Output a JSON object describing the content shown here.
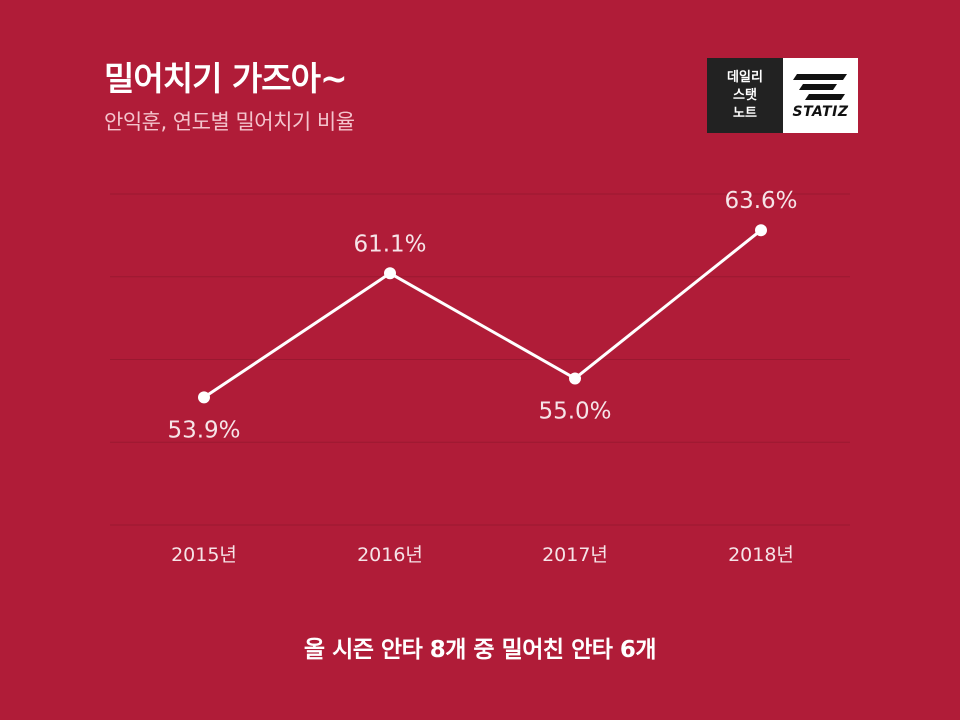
{
  "header": {
    "title": "밀어치기 가즈아~",
    "subtitle": "안익훈, 연도별 밀어치기 비율"
  },
  "logo": {
    "line1": "데일리",
    "line2": "스탯",
    "line3": "노트",
    "wordmark": "STATIZ"
  },
  "footnote": "올 시즌 안타 8개 중 밀어친 안타 6개",
  "colors": {
    "background": "#b01c38",
    "line": "#ffffff",
    "grid": "#9a1830"
  },
  "chart_data": {
    "type": "line",
    "categories": [
      "2015년",
      "2016년",
      "2017년",
      "2018년"
    ],
    "values": [
      53.9,
      61.1,
      55.0,
      63.6
    ],
    "value_labels": [
      "53.9%",
      "61.1%",
      "55.0%",
      "63.6%"
    ],
    "label_position": [
      "below",
      "above",
      "below",
      "above"
    ],
    "ylim": [
      46.5,
      65.7
    ],
    "grid": true
  }
}
